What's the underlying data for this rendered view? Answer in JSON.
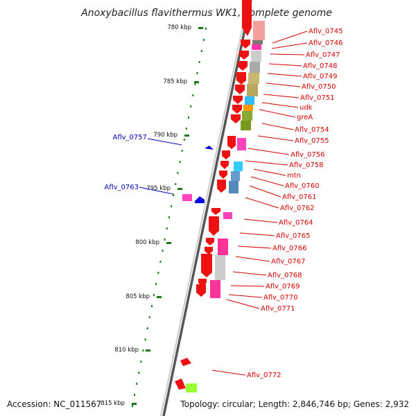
{
  "title": "Anoxybacillus flavithermus WK1, complete genome",
  "footer": {
    "accession": "Accession: NC_011567",
    "topology": "Topology: circular; Length: 2,846,746 bp; Genes: 2,932"
  },
  "scale_labels": [
    "780 kbp",
    "785 kbp",
    "790 kbp",
    "795 kbp",
    "800 kbp",
    "805 kbp",
    "810 kbp",
    "815 kbp"
  ],
  "genes_right": [
    "Aflv_0745",
    "Aflv_0746",
    "Aflv_0747",
    "Aflv_0748",
    "Aflv_0749",
    "Aflv_0750",
    "Aflv_0751",
    "udk",
    "greA",
    "Aflv_0754",
    "Aflv_0755",
    "Aflv_0756",
    "Aflv_0758",
    "mtn",
    "Aflv_0760",
    "Aflv_0761",
    "Aflv_0762",
    "Aflv_0764",
    "Aflv_0765",
    "Aflv_0766",
    "Aflv_0767",
    "Aflv_0768",
    "Aflv_0769",
    "Aflv_0770",
    "Aflv_0771",
    "Aflv_0772"
  ],
  "genes_left": [
    "Aflv_0757",
    "Aflv_0763"
  ],
  "colors": {
    "forward_gene": "#ee1111",
    "reverse_gene": "#0000ee",
    "label_right": "#d40000",
    "label_left": "#0000bb",
    "tick": "#1a7a1a",
    "backbone": "#777777"
  }
}
